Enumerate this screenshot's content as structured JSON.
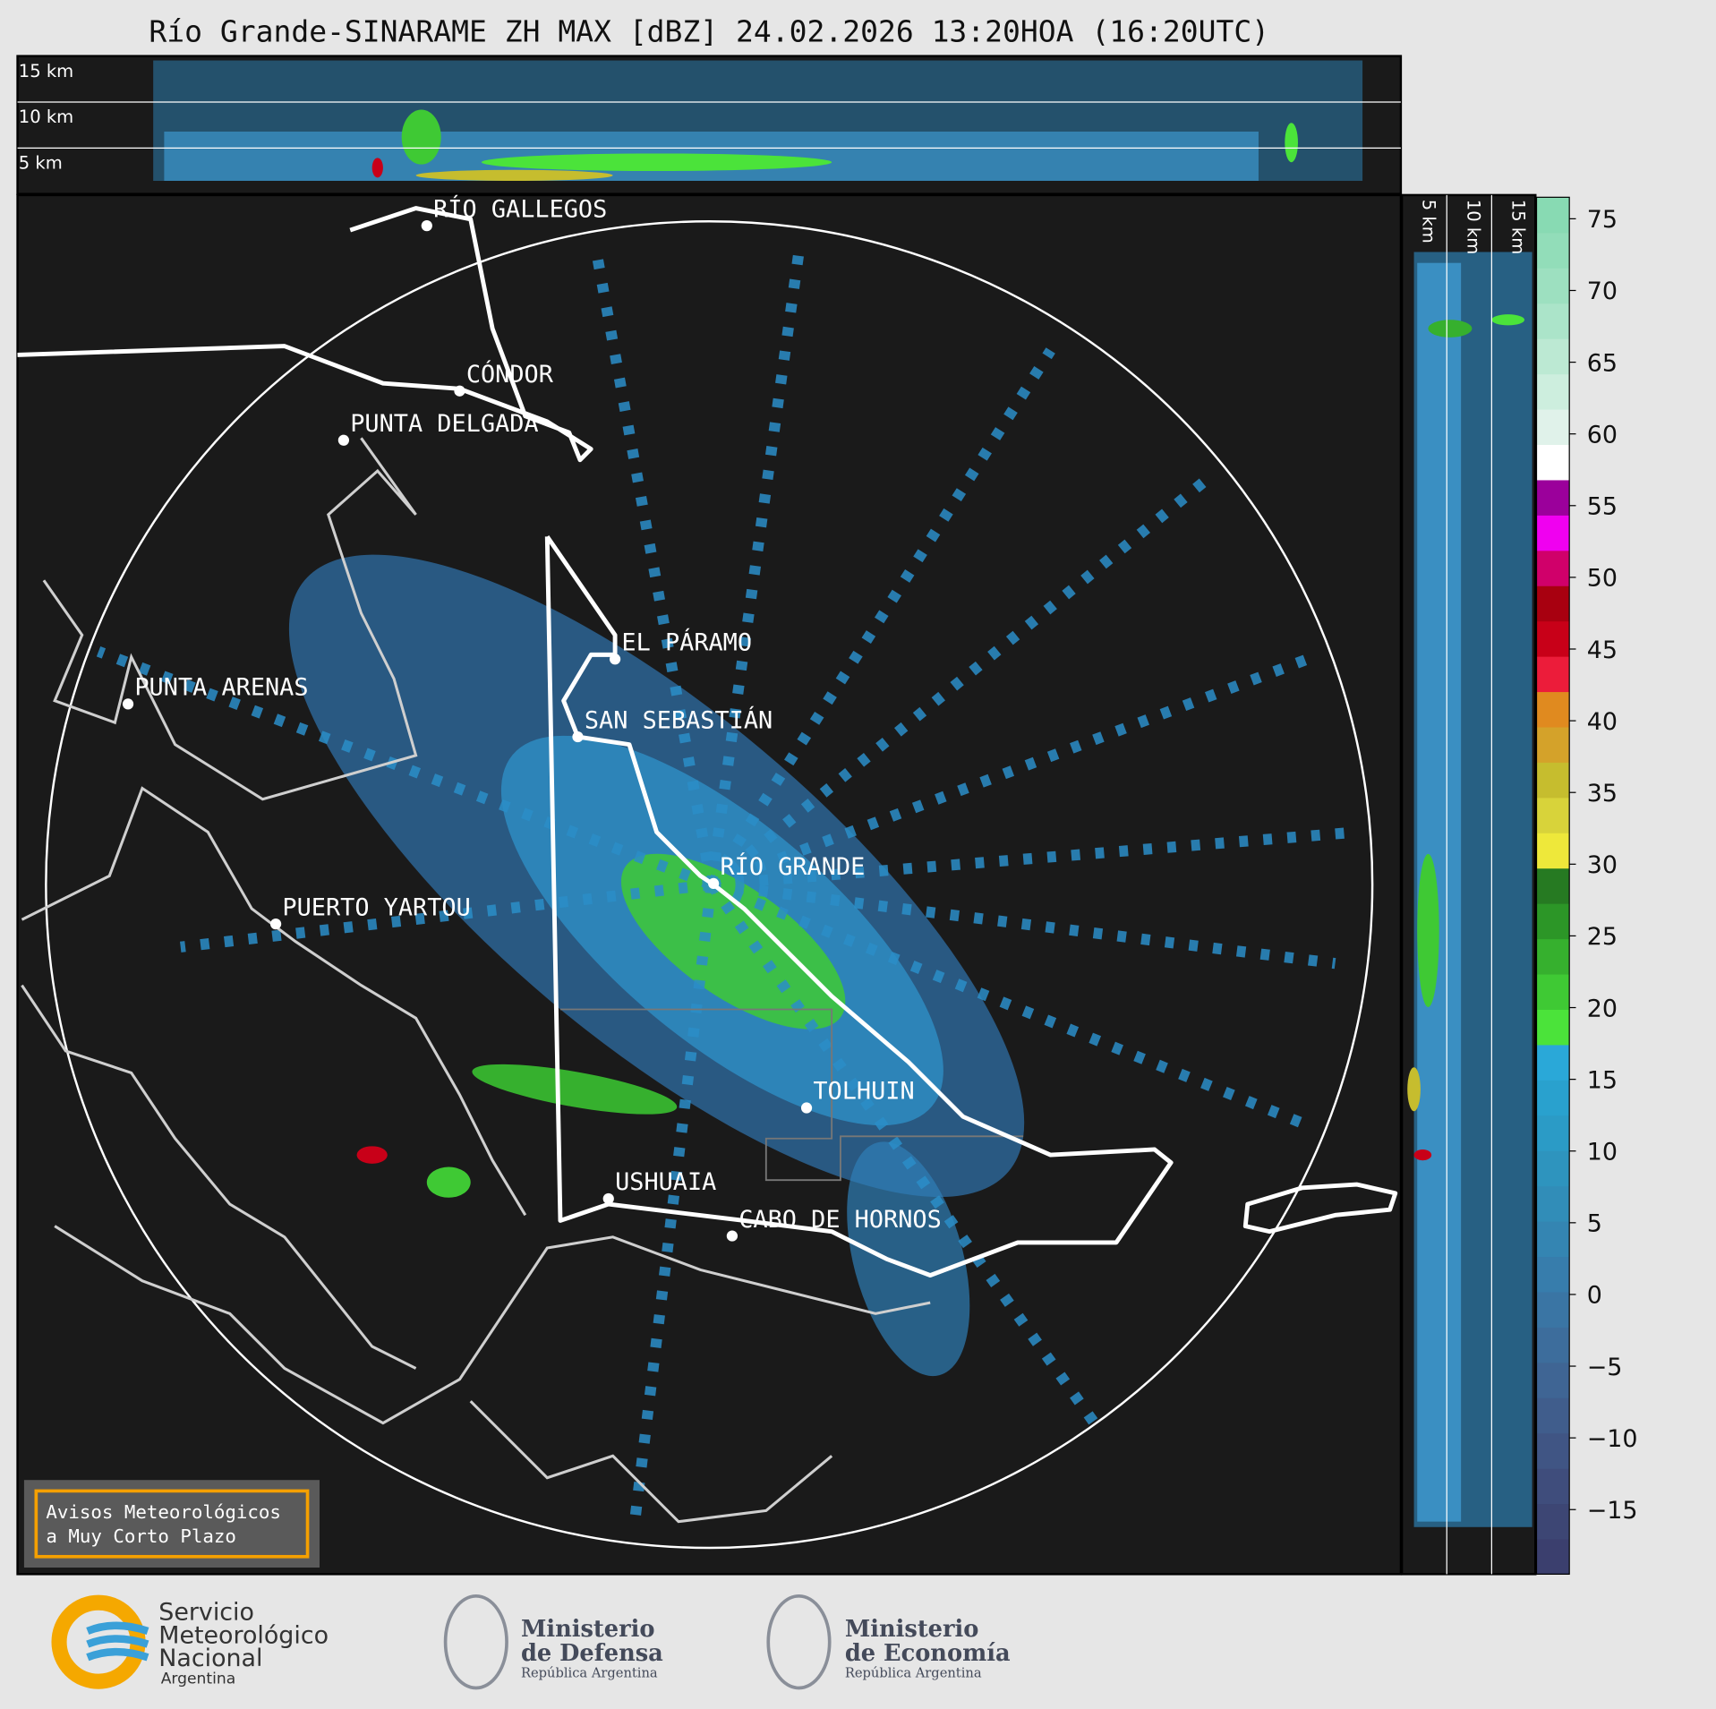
{
  "header": {
    "title": "Río Grande-SINARAME ZH MAX [dBZ] 24.02.2026 13:20HOA (16:20UTC)"
  },
  "top_panel": {
    "height_labels": [
      "15 km",
      "10 km",
      "5 km"
    ]
  },
  "side_panel": {
    "height_labels": [
      "5 km",
      "10 km",
      "15 km"
    ]
  },
  "map": {
    "places": [
      "RÍO GALLEGOS",
      "CÓNDOR",
      "PUNTA DELGADA",
      "EL PÁRAMO",
      "PUNTA ARENAS",
      "SAN SEBASTIÁN",
      "RÍO GRANDE",
      "PUERTO YARTOU",
      "TOLHUIN",
      "USHUAIA",
      "CABO DE HORNOS"
    ]
  },
  "notice": {
    "lines": [
      "Avisos Meteorológicos",
      "a Muy Corto Plazo"
    ]
  },
  "colorbar": {
    "lim": [
      -19.5,
      76.5
    ],
    "ticks": [
      75,
      70,
      65,
      60,
      55,
      50,
      45,
      40,
      35,
      30,
      25,
      20,
      15,
      10,
      5,
      0,
      {
        "value": -5,
        "label": "−5"
      },
      {
        "value": -10,
        "label": "−10"
      },
      {
        "value": -15,
        "label": "−15"
      }
    ],
    "colors": [
      "#3b3f6e",
      "#3d4674",
      "#3f4d7c",
      "#405584",
      "#405d8c",
      "#3f6594",
      "#3d6d9c",
      "#3a75a4",
      "#377dac",
      "#3485b2",
      "#318db8",
      "#2e94be",
      "#2b9bc6",
      "#29a1ce",
      "#2aa8d8",
      "#4be33a",
      "#3fc934",
      "#36b02e",
      "#2c9627",
      "#267a22",
      "#eee83a",
      "#d8d33a",
      "#c6bd2e",
      "#d4a22a",
      "#e08a1f",
      "#ec1c3a",
      "#c80018",
      "#a80010",
      "#d0006a",
      "#f000f0",
      "#9b009b",
      "#ffffff",
      "#e0f2ea",
      "#cdeede",
      "#bce9d3",
      "#abe4c9",
      "#9de0c0",
      "#92ddb9",
      "#88dab3"
    ]
  },
  "logos": {
    "smn": [
      "Servicio",
      "Meteorológico",
      "Nacional",
      "Argentina"
    ],
    "defensa": [
      "Ministerio",
      "de Defensa",
      "República Argentina"
    ],
    "economia": [
      "Ministerio",
      "de Economía",
      "República Argentina"
    ]
  }
}
